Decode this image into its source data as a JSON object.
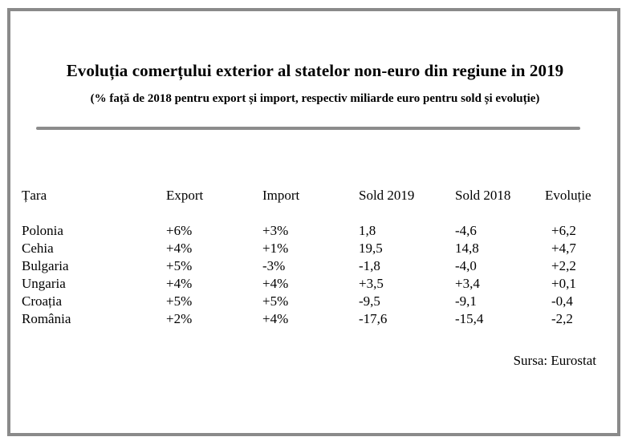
{
  "document": {
    "title": "Evoluția comerțului exterior al statelor non-euro din regiune in 2019",
    "subtitle": "(% față de 2018 pentru export și import, respectiv miliarde euro pentru sold și evoluție)",
    "source": "Sursa: Eurostat"
  },
  "table": {
    "headers": [
      "Țara",
      "Export",
      "Import",
      "Sold 2019",
      "Sold 2018",
      "Evoluție"
    ],
    "rows": [
      [
        "Polonia",
        "+6%",
        "+3%",
        "1,8",
        "-4,6",
        "+6,2"
      ],
      [
        "Cehia",
        "+4%",
        "+1%",
        "19,5",
        "14,8",
        "+4,7"
      ],
      [
        "Bulgaria",
        "+5%",
        "-3%",
        "-1,8",
        "-4,0",
        "+2,2"
      ],
      [
        "Ungaria",
        "+4%",
        "+4%",
        "+3,5",
        "+3,4",
        "+0,1"
      ],
      [
        "Croația",
        "+5%",
        "+5%",
        "-9,5",
        "-9,1",
        "-0,4"
      ],
      [
        "România",
        "+2%",
        "+4%",
        "-17,6",
        "-15,4",
        "-2,2"
      ]
    ]
  }
}
